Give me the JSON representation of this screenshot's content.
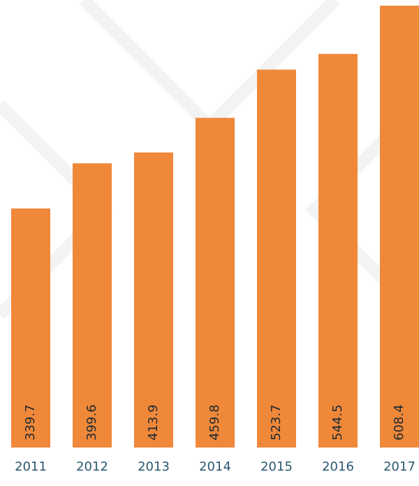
{
  "chart_data": {
    "type": "bar",
    "categories": [
      "2011",
      "2012",
      "2013",
      "2014",
      "2015",
      "2016",
      "2017"
    ],
    "values": [
      339.7,
      399.6,
      413.9,
      459.8,
      523.7,
      544.5,
      608.4
    ],
    "color": "#f0883a",
    "ylim": [
      23,
      610
    ]
  }
}
